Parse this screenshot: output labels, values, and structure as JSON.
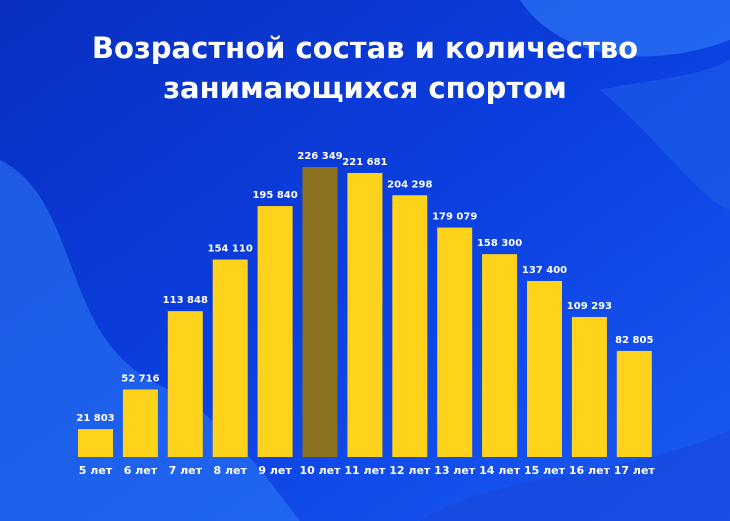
{
  "chart_data": {
    "type": "bar",
    "title": [
      "Возрастной состав и количество",
      "занимающихся спортом"
    ],
    "categories": [
      "5 лет",
      "6 лет",
      "7 лет",
      "8 лет",
      "9 лет",
      "10 лет",
      "11 лет",
      "12 лет",
      "13 лет",
      "14 лет",
      "15 лет",
      "16 лет",
      "17 лет"
    ],
    "values": [
      21803,
      52716,
      113848,
      154110,
      195840,
      226349,
      221681,
      204298,
      179079,
      158300,
      137400,
      109293,
      82805
    ],
    "value_labels": [
      "21 803",
      "52 716",
      "113 848",
      "154 110",
      "195 840",
      "226 349",
      "221 681",
      "204 298",
      "179 079",
      "158 300",
      "137 400",
      "109 293",
      "82 805"
    ],
    "colors": [
      "#ffd21c",
      "#ffd21c",
      "#ffd21c",
      "#ffd21c",
      "#ffd21c",
      "#8c7121",
      "#ffd21c",
      "#ffd21c",
      "#ffd21c",
      "#ffd21c",
      "#ffd21c",
      "#ffd21c",
      "#ffd21c"
    ]
  }
}
